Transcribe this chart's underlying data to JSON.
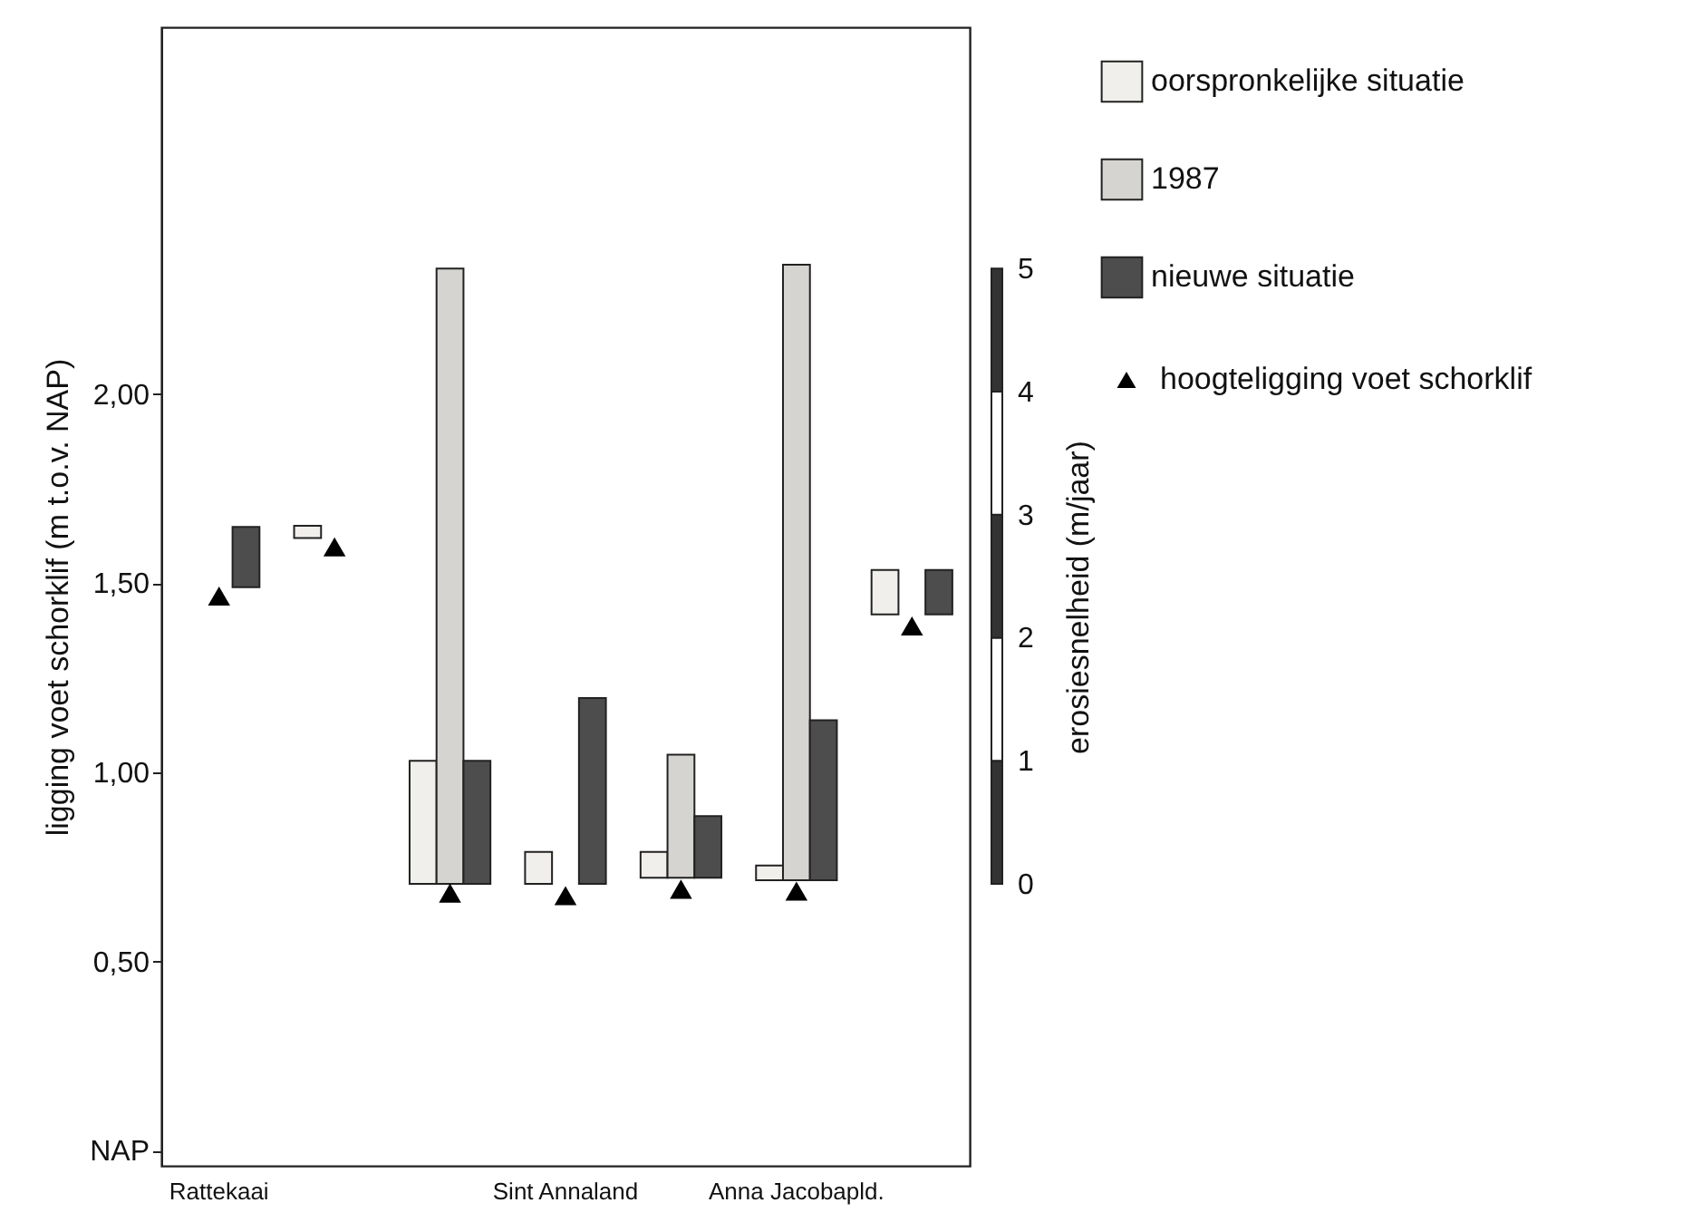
{
  "chart_data": {
    "type": "bar",
    "ylabel": "ligging voet schorklif (m t.o.v. NAP)",
    "y2label": "erosiesnelheid (m/jaar)",
    "categories": [
      "Rattekaai",
      null,
      null,
      "Sint Annaland",
      null,
      "Anna Jacobapld.",
      null
    ],
    "series": [
      {
        "name": "oorspronkelijke situatie",
        "axis": "y2",
        "color": "#f1efeb",
        "base": [
          null,
          2.81,
          0,
          0,
          0.05,
          0.03,
          2.19
        ],
        "values": [
          null,
          0.1,
          1.0,
          0.26,
          0.21,
          0.12,
          0.36
        ]
      },
      {
        "name": "1987",
        "axis": "y2",
        "color": "#d6d4d0",
        "base": [
          null,
          null,
          0,
          null,
          0.05,
          0.03,
          null
        ],
        "values": [
          null,
          null,
          5.0,
          null,
          1.0,
          5.0,
          null
        ]
      },
      {
        "name": "nieuwe situatie",
        "axis": "y2",
        "color": "#4d4d4d",
        "base": [
          2.41,
          null,
          0,
          0,
          0.05,
          0.03,
          2.19
        ],
        "values": [
          0.49,
          null,
          1.0,
          1.51,
          0.5,
          1.3,
          0.36
        ]
      },
      {
        "name": "hoogteligging voet schorklif",
        "type": "scatter",
        "axis": "y",
        "color": "#000000",
        "values": [
          1.465,
          1.595,
          0.68,
          0.673,
          0.69,
          0.685,
          1.386
        ]
      }
    ],
    "ylim": [
      -0.04,
      2.97
    ],
    "yticks": [
      {
        "value": 0,
        "label": "NAP"
      },
      {
        "value": 0.5,
        "label": "0,50"
      },
      {
        "value": 1,
        "label": "1,00"
      },
      {
        "value": 1.5,
        "label": "1,50"
      },
      {
        "value": 2,
        "label": "2,00"
      }
    ],
    "y2lim": [
      -2.29,
      6.96
    ],
    "y2ticks": [
      0,
      1,
      2,
      3,
      4,
      5
    ],
    "marker": "triangle",
    "legend": "top right",
    "grid": false
  }
}
